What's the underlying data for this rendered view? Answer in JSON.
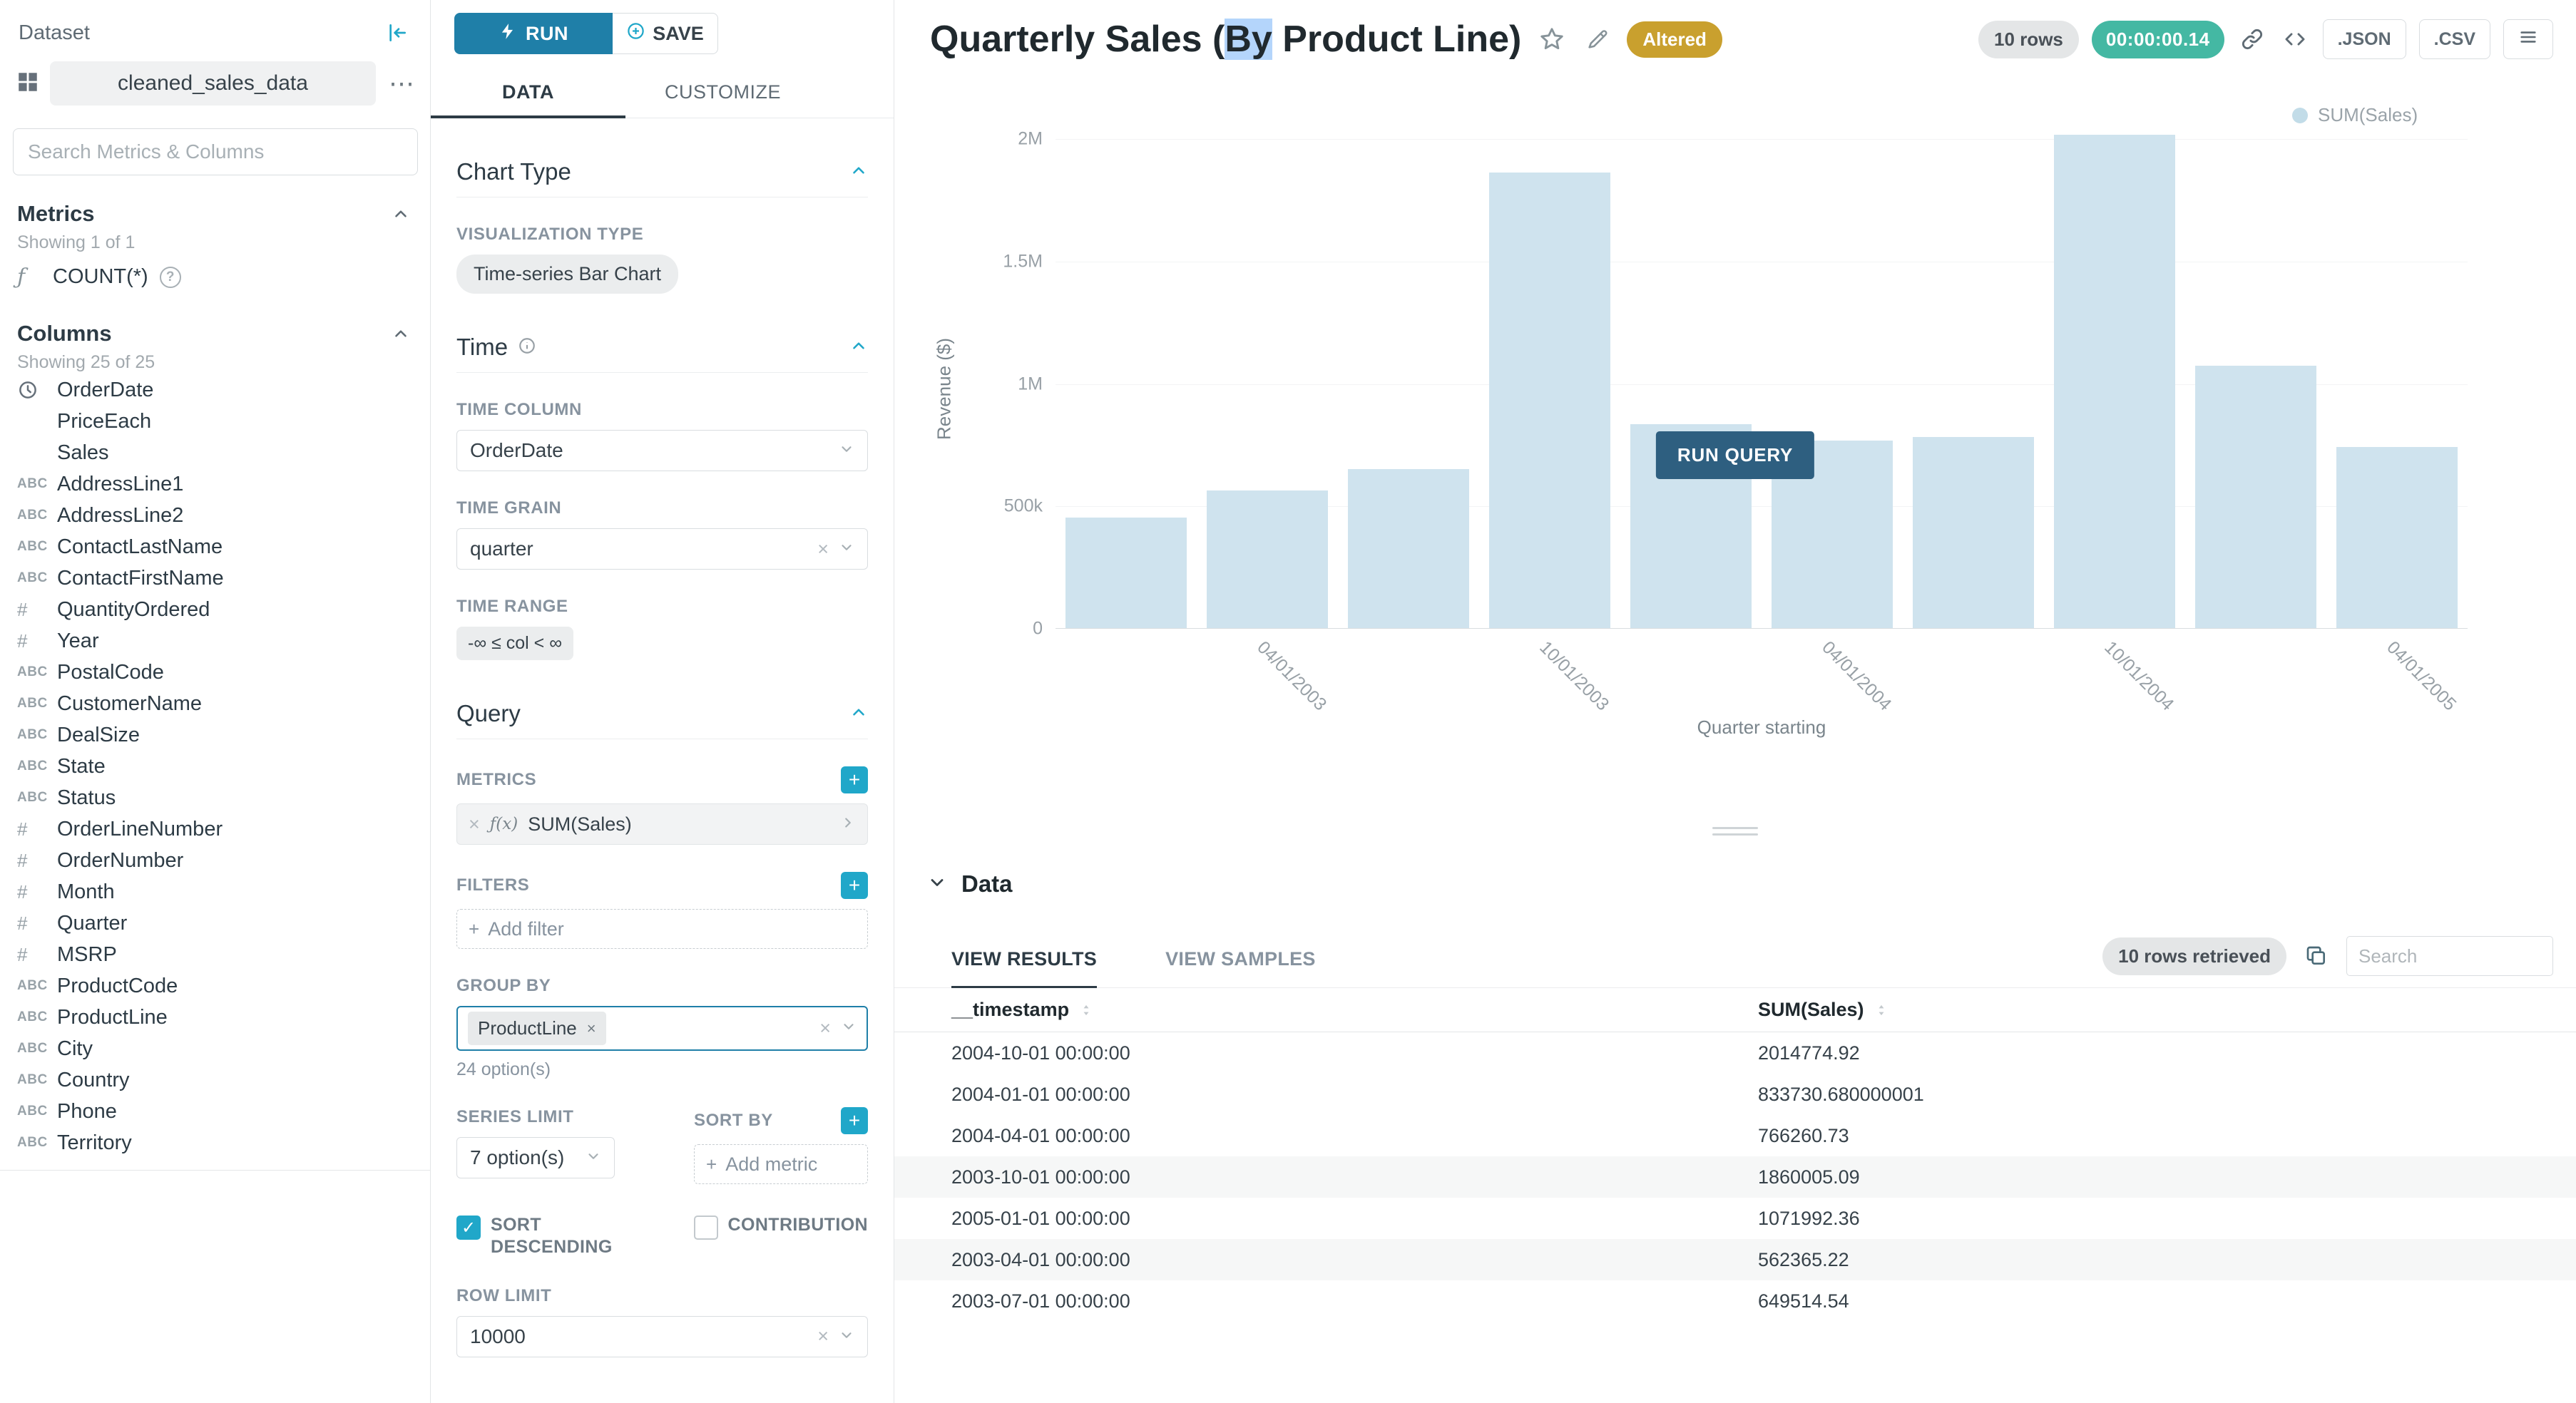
{
  "colors": {
    "accent": "#20a7c9",
    "run_button": "#1f7fa8",
    "run_query_button": "#2e5f80",
    "timer_badge": "#44b8a3",
    "altered_badge": "#c9a02e",
    "bar_fill": "#cfe3ee",
    "selection_highlight": "#b4d5fb"
  },
  "icon_glyphs": {
    "function": "ƒ",
    "str": "ABC",
    "num": "#",
    "time": "",
    "none": ""
  },
  "dataset_panel": {
    "title": "Dataset",
    "dataset_name": "cleaned_sales_data",
    "search_placeholder": "Search Metrics & Columns",
    "metrics_section": {
      "title": "Metrics",
      "showing": "Showing 1 of 1",
      "items": [
        {
          "icon": "function",
          "label": "COUNT(*)",
          "help_icon": "?"
        }
      ]
    },
    "columns_section": {
      "title": "Columns",
      "showing": "Showing 25 of 25",
      "items": [
        {
          "type": "time",
          "label": "OrderDate"
        },
        {
          "type": "none",
          "label": "PriceEach"
        },
        {
          "type": "none",
          "label": "Sales"
        },
        {
          "type": "str",
          "label": "AddressLine1"
        },
        {
          "type": "str",
          "label": "AddressLine2"
        },
        {
          "type": "str",
          "label": "ContactLastName"
        },
        {
          "type": "str",
          "label": "ContactFirstName"
        },
        {
          "type": "num",
          "label": "QuantityOrdered"
        },
        {
          "type": "num",
          "label": "Year"
        },
        {
          "type": "str",
          "label": "PostalCode"
        },
        {
          "type": "str",
          "label": "CustomerName"
        },
        {
          "type": "str",
          "label": "DealSize"
        },
        {
          "type": "str",
          "label": "State"
        },
        {
          "type": "str",
          "label": "Status"
        },
        {
          "type": "num",
          "label": "OrderLineNumber"
        },
        {
          "type": "num",
          "label": "OrderNumber"
        },
        {
          "type": "num",
          "label": "Month"
        },
        {
          "type": "num",
          "label": "Quarter"
        },
        {
          "type": "num",
          "label": "MSRP"
        },
        {
          "type": "str",
          "label": "ProductCode"
        },
        {
          "type": "str",
          "label": "ProductLine"
        },
        {
          "type": "str",
          "label": "City"
        },
        {
          "type": "str",
          "label": "Country"
        },
        {
          "type": "str",
          "label": "Phone"
        },
        {
          "type": "str",
          "label": "Territory"
        }
      ]
    }
  },
  "control_panel": {
    "run_button": "RUN",
    "save_button": "SAVE",
    "tabs": {
      "data": "DATA",
      "customize": "CUSTOMIZE"
    },
    "chart_type_section": {
      "title": "Chart Type",
      "visualization_type_label": "VISUALIZATION TYPE",
      "visualization_type": "Time-series Bar Chart"
    },
    "time_section": {
      "title": "Time",
      "time_column_label": "TIME COLUMN",
      "time_column": "OrderDate",
      "time_grain_label": "TIME GRAIN",
      "time_grain": "quarter",
      "time_range_label": "TIME RANGE",
      "time_range": "-∞ ≤ col < ∞"
    },
    "query_section": {
      "title": "Query",
      "metrics_label": "METRICS",
      "metric_prefix": "ƒ(x)",
      "metric": "SUM(Sales)",
      "filters_label": "FILTERS",
      "add_filter": "Add filter",
      "group_by_label": "GROUP BY",
      "group_by_value": "ProductLine",
      "group_by_hint": "24 option(s)",
      "series_limit_label": "SERIES LIMIT",
      "series_limit": "7 option(s)",
      "sort_by_label": "SORT BY",
      "sort_by_placeholder": "Add metric",
      "sort_descending_label": "SORT DESCENDING",
      "sort_descending_checked": true,
      "contribution_label": "CONTRIBUTION",
      "contribution_checked": false,
      "row_limit_label": "ROW LIMIT",
      "row_limit": "10000"
    }
  },
  "header": {
    "title": {
      "prefix": "Quarterly Sales (",
      "highlighted": "By",
      "suffix": " Product Line)"
    },
    "altered_badge": "Altered",
    "rows_badge": "10 rows",
    "timer": "00:00:00.14",
    "export_json": ".JSON",
    "export_csv": ".CSV"
  },
  "chart_overlay": {
    "run_query": "RUN QUERY"
  },
  "chart_data": {
    "type": "bar",
    "title": "Quarterly Sales (By Product Line)",
    "xlabel": "Quarter starting",
    "ylabel": "Revenue ($)",
    "ylim": [
      0,
      2000000
    ],
    "grid": false,
    "legend": [
      "SUM(Sales)"
    ],
    "legend_position": "top-right",
    "x": [
      "2003-01-01",
      "2003-04-01",
      "2003-07-01",
      "2003-10-01",
      "2004-01-01",
      "2004-04-01",
      "2004-07-01",
      "2004-10-01",
      "2005-01-01",
      "2005-04-01"
    ],
    "series": [
      {
        "name": "SUM(Sales)",
        "values": [
          450000,
          562365.22,
          649514.54,
          1860005.09,
          833730.68,
          766260.73,
          780000,
          2014774.92,
          1071992.36,
          740000
        ]
      }
    ],
    "x_ticks": [
      {
        "index": 1,
        "label": "04/01/2003"
      },
      {
        "index": 3,
        "label": "10/01/2003"
      },
      {
        "index": 5,
        "label": "04/01/2004"
      },
      {
        "index": 7,
        "label": "10/01/2004"
      },
      {
        "index": 9,
        "label": "04/01/2005"
      }
    ],
    "yticks": [
      {
        "label": "0",
        "value": 0
      },
      {
        "label": "500k",
        "value": 500000
      },
      {
        "label": "1M",
        "value": 1000000
      },
      {
        "label": "1.5M",
        "value": 1500000
      },
      {
        "label": "2M",
        "value": 2000000
      }
    ]
  },
  "results_panel": {
    "title": "Data",
    "tabs": {
      "results": "VIEW RESULTS",
      "samples": "VIEW SAMPLES"
    },
    "rows_retrieved": "10 rows retrieved",
    "search_placeholder": "Search",
    "table": {
      "columns": [
        "__timestamp",
        "SUM(Sales)"
      ],
      "rows": [
        {
          "timestamp": "2004-10-01 00:00:00",
          "value": "2014774.92",
          "shaded": false
        },
        {
          "timestamp": "2004-01-01 00:00:00",
          "value": "833730.680000001",
          "shaded": false
        },
        {
          "timestamp": "2004-04-01 00:00:00",
          "value": "766260.73",
          "shaded": false
        },
        {
          "timestamp": "2003-10-01 00:00:00",
          "value": "1860005.09",
          "shaded": true
        },
        {
          "timestamp": "2005-01-01 00:00:00",
          "value": "1071992.36",
          "shaded": false
        },
        {
          "timestamp": "2003-04-01 00:00:00",
          "value": "562365.22",
          "shaded": true
        },
        {
          "timestamp": "2003-07-01 00:00:00",
          "value": "649514.54",
          "shaded": false
        }
      ]
    }
  }
}
